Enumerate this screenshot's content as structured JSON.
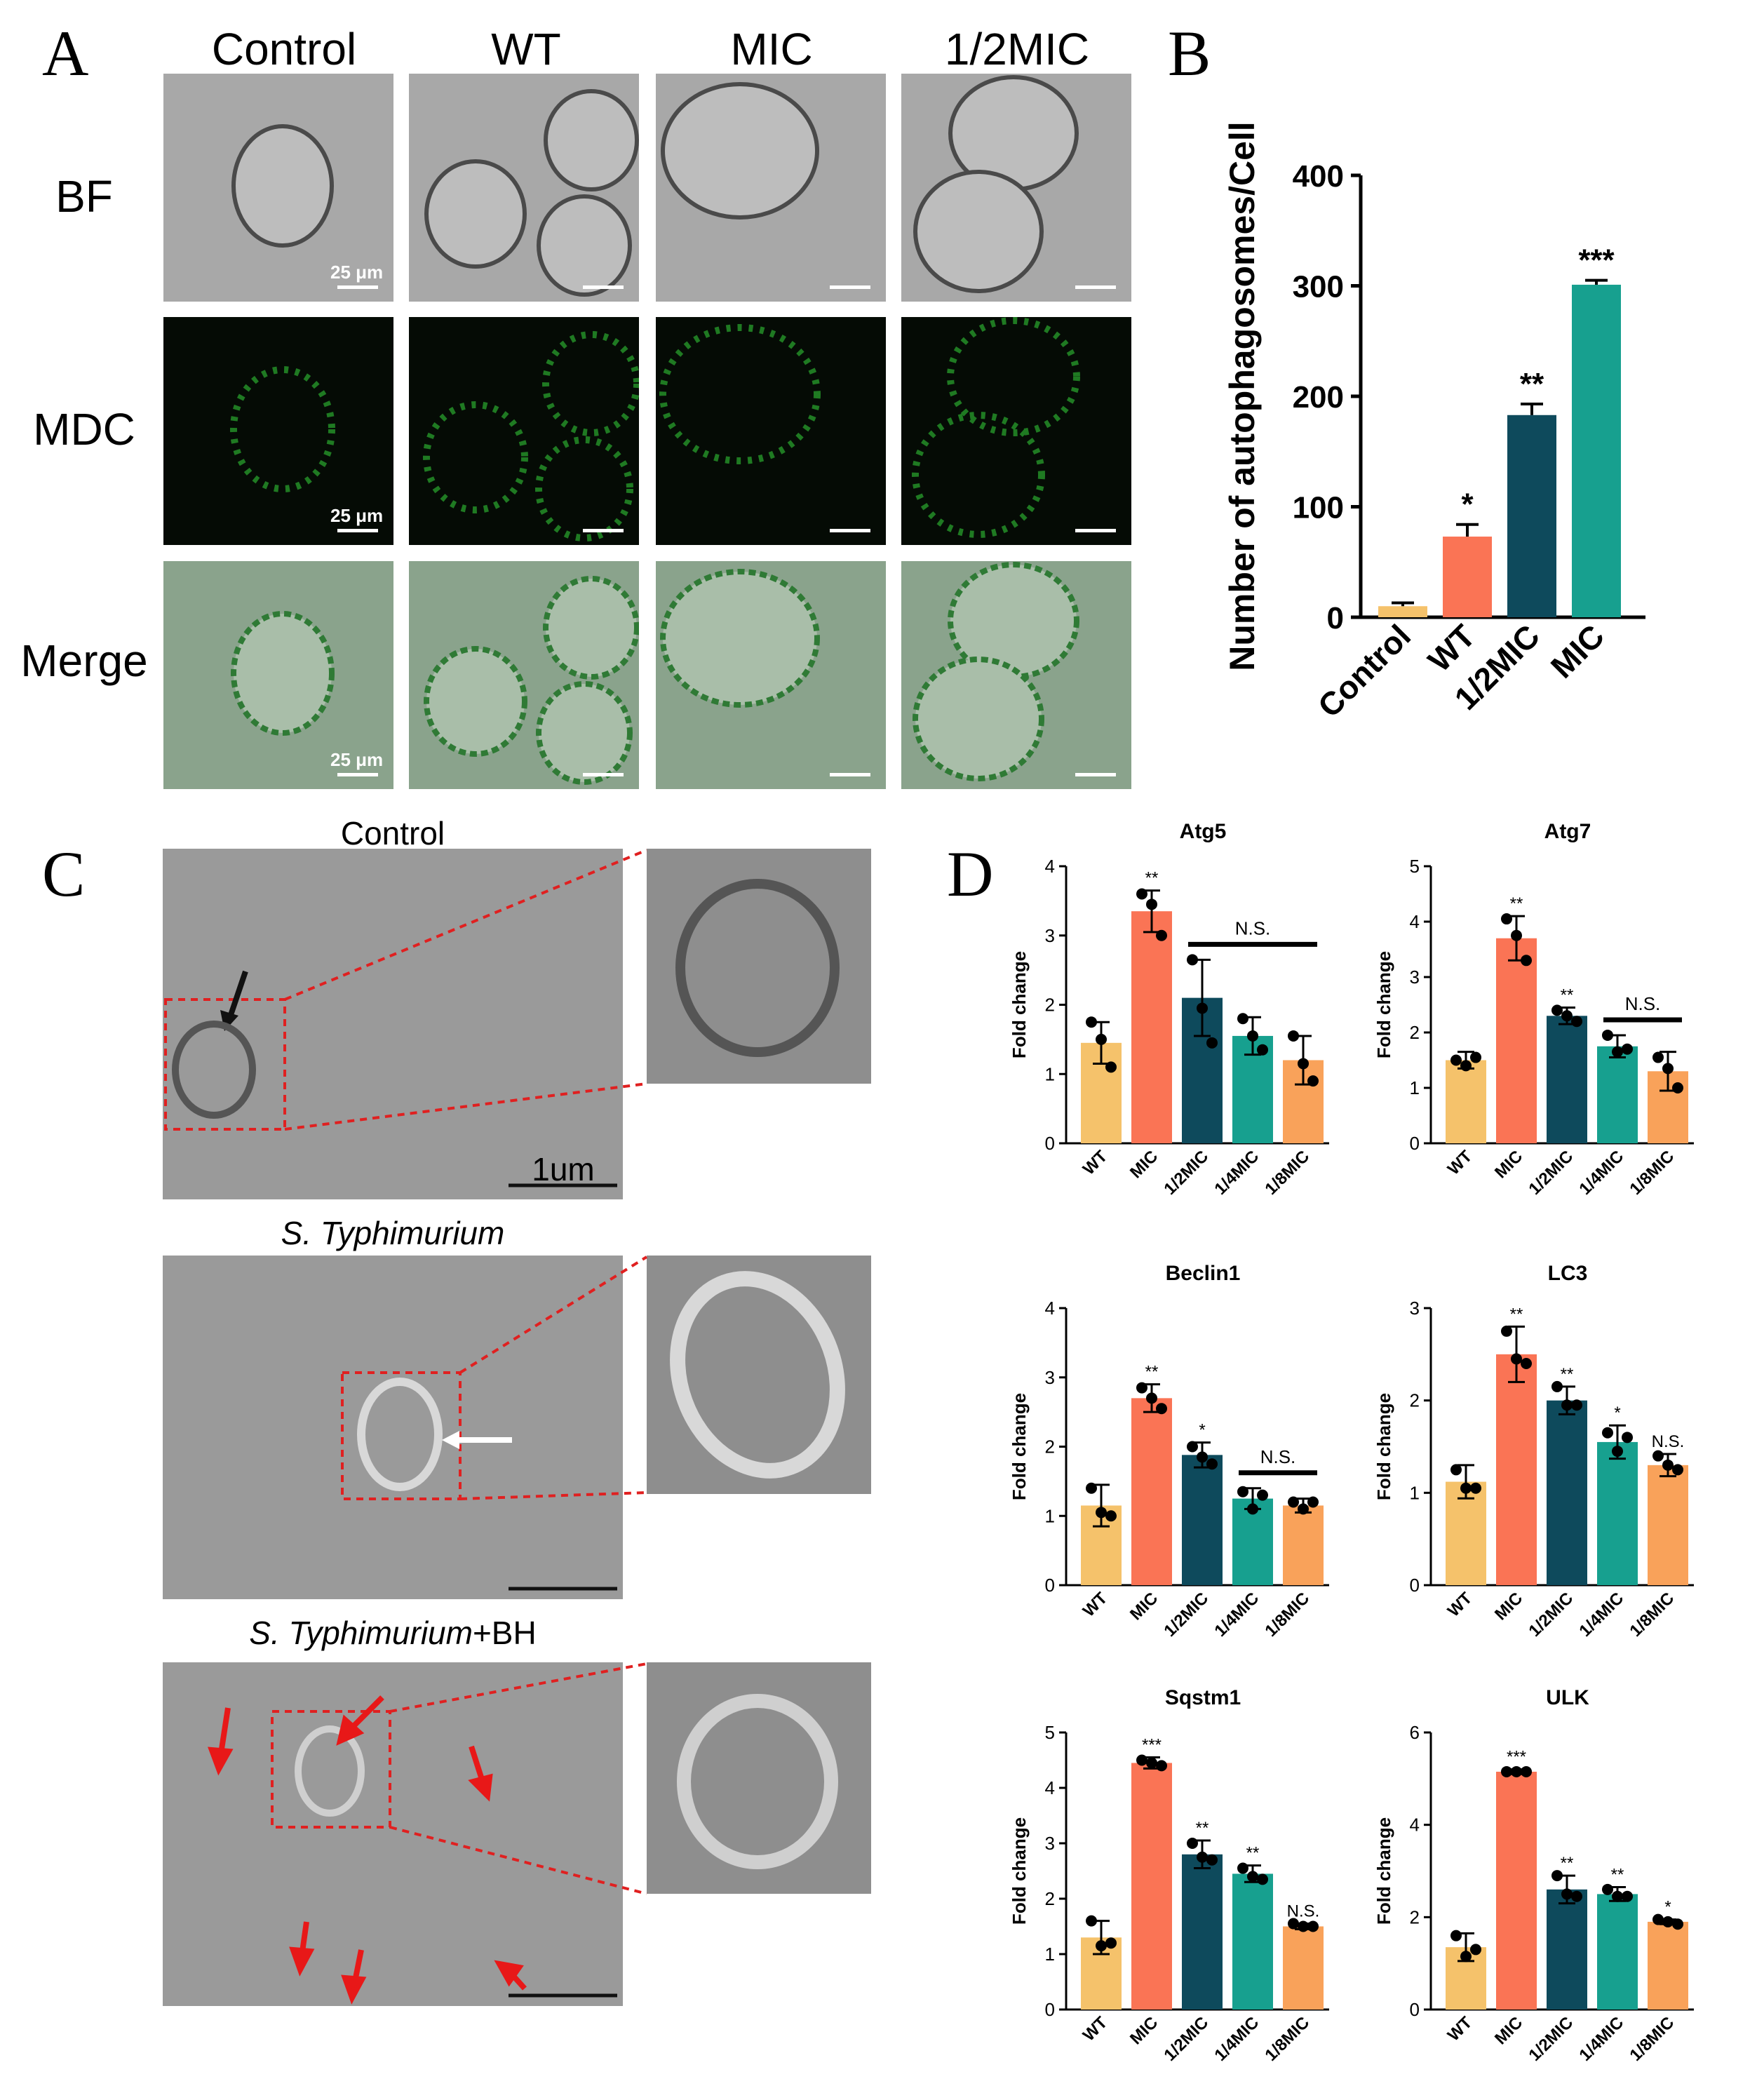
{
  "panel_labels": {
    "a": "A",
    "b": "B",
    "c": "C",
    "d": "D"
  },
  "panel_a": {
    "columns": [
      "Control",
      "WT",
      "MIC",
      "1/2MIC"
    ],
    "rows": [
      "BF",
      "MDC",
      "Merge"
    ],
    "scale_text": "25 μm"
  },
  "panel_c": {
    "title_control": "Control",
    "title_st": "S. Typhimurium",
    "title_st_bh_italic": "S. Typhimurium",
    "title_st_bh_suffix": "+BH",
    "scale_text": "1um"
  },
  "colors": {
    "control": "#F5C26B",
    "wt": "#F5C26B",
    "mic": "#FA7455",
    "half_mic": "#0E4A5C",
    "quarter_mic": "#17A08F",
    "eighth_mic": "#F9A25A",
    "b_wt": "#FA7455",
    "b_half": "#0E4A5C",
    "b_mic": "#17A08F"
  },
  "chart_data": [
    {
      "type": "bar",
      "panel": "B",
      "ylabel": "Number of autophagosomes/Cell",
      "categories": [
        "Control",
        "WT",
        "1/2MIC",
        "MIC"
      ],
      "values": [
        10,
        73,
        183,
        301
      ],
      "errors": [
        3,
        11,
        10,
        4
      ],
      "significance": [
        "",
        "*",
        "**",
        "***"
      ],
      "ylim": [
        0,
        400
      ],
      "yticks": [
        0,
        100,
        200,
        300,
        400
      ]
    },
    {
      "type": "bar",
      "panel": "D",
      "title": "Atg5",
      "ylabel": "Fold change",
      "categories": [
        "WT",
        "MIC",
        "1/2MIC",
        "1/4MIC",
        "1/8MIC"
      ],
      "values": [
        1.45,
        3.35,
        2.1,
        1.55,
        1.2
      ],
      "errors": [
        0.3,
        0.3,
        0.55,
        0.27,
        0.35
      ],
      "points": [
        [
          1.75,
          1.5,
          1.1
        ],
        [
          3.6,
          3.45,
          3.0
        ],
        [
          2.65,
          1.95,
          1.45
        ],
        [
          1.8,
          1.55,
          1.35
        ],
        [
          1.55,
          1.15,
          0.9
        ]
      ],
      "significance": [
        "",
        "**",
        "",
        "",
        ""
      ],
      "bracket": {
        "from": 2,
        "to": 4,
        "label": "N.S."
      },
      "ylim": [
        0,
        4
      ],
      "yticks": [
        0,
        1,
        2,
        3,
        4
      ]
    },
    {
      "type": "bar",
      "panel": "D",
      "title": "Atg7",
      "ylabel": "Fold change",
      "categories": [
        "WT",
        "MIC",
        "1/2MIC",
        "1/4MIC",
        "1/8MIC"
      ],
      "values": [
        1.5,
        3.7,
        2.3,
        1.75,
        1.3
      ],
      "errors": [
        0.15,
        0.4,
        0.15,
        0.2,
        0.35
      ],
      "points": [
        [
          1.5,
          1.4,
          1.55
        ],
        [
          4.05,
          3.75,
          3.3
        ],
        [
          2.4,
          2.3,
          2.2
        ],
        [
          1.95,
          1.65,
          1.7
        ],
        [
          1.55,
          1.35,
          1.0
        ]
      ],
      "significance": [
        "",
        "**",
        "**",
        "",
        ""
      ],
      "bracket": {
        "from": 3,
        "to": 4,
        "label": "N.S."
      },
      "ylim": [
        0,
        5
      ],
      "yticks": [
        0,
        1,
        2,
        3,
        4,
        5
      ]
    },
    {
      "type": "bar",
      "panel": "D",
      "title": "Beclin1",
      "ylabel": "Fold change",
      "categories": [
        "WT",
        "MIC",
        "1/2MIC",
        "1/4MIC",
        "1/8MIC"
      ],
      "values": [
        1.15,
        2.7,
        1.88,
        1.25,
        1.15
      ],
      "errors": [
        0.3,
        0.2,
        0.18,
        0.15,
        0.1
      ],
      "points": [
        [
          1.4,
          1.05,
          1.0
        ],
        [
          2.85,
          2.7,
          2.55
        ],
        [
          2.0,
          1.85,
          1.75
        ],
        [
          1.35,
          1.1,
          1.3
        ],
        [
          1.2,
          1.1,
          1.2
        ]
      ],
      "significance": [
        "",
        "**",
        "*",
        "",
        ""
      ],
      "bracket": {
        "from": 3,
        "to": 4,
        "label": "N.S."
      },
      "ylim": [
        0,
        4
      ],
      "yticks": [
        0,
        1,
        2,
        3,
        4
      ]
    },
    {
      "type": "bar",
      "panel": "D",
      "title": "LC3",
      "ylabel": "Fold change",
      "categories": [
        "WT",
        "MIC",
        "1/2MIC",
        "1/4MIC",
        "1/8MIC"
      ],
      "values": [
        1.12,
        2.5,
        2.0,
        1.55,
        1.3
      ],
      "errors": [
        0.18,
        0.3,
        0.15,
        0.18,
        0.12
      ],
      "points": [
        [
          1.25,
          1.05,
          1.05
        ],
        [
          2.75,
          2.45,
          2.4
        ],
        [
          2.15,
          1.95,
          1.95
        ],
        [
          1.65,
          1.45,
          1.6
        ],
        [
          1.4,
          1.3,
          1.25
        ]
      ],
      "significance": [
        "",
        "**",
        "**",
        "*",
        "N.S."
      ],
      "ylim": [
        0,
        3
      ],
      "yticks": [
        0,
        1,
        2,
        3
      ]
    },
    {
      "type": "bar",
      "panel": "D",
      "title": "Sqstm1",
      "ylabel": "Fold change",
      "categories": [
        "WT",
        "MIC",
        "1/2MIC",
        "1/4MIC",
        "1/8MIC"
      ],
      "values": [
        1.3,
        4.45,
        2.8,
        2.45,
        1.5
      ],
      "errors": [
        0.3,
        0.1,
        0.25,
        0.15,
        0.05
      ],
      "points": [
        [
          1.6,
          1.15,
          1.2
        ],
        [
          4.5,
          4.45,
          4.4
        ],
        [
          3.0,
          2.75,
          2.7
        ],
        [
          2.55,
          2.4,
          2.35
        ],
        [
          1.55,
          1.5,
          1.5
        ]
      ],
      "significance": [
        "",
        "***",
        "**",
        "**",
        "N.S."
      ],
      "ylim": [
        0,
        5
      ],
      "yticks": [
        0,
        1,
        2,
        3,
        4,
        5
      ]
    },
    {
      "type": "bar",
      "panel": "D",
      "title": "ULK",
      "ylabel": "Fold change",
      "categories": [
        "WT",
        "MIC",
        "1/2MIC",
        "1/4MIC",
        "1/8MIC"
      ],
      "values": [
        1.35,
        5.15,
        2.6,
        2.5,
        1.9
      ],
      "errors": [
        0.3,
        0.05,
        0.3,
        0.15,
        0.05
      ],
      "points": [
        [
          1.6,
          1.15,
          1.3
        ],
        [
          5.15,
          5.15,
          5.15
        ],
        [
          2.9,
          2.5,
          2.45
        ],
        [
          2.6,
          2.45,
          2.45
        ],
        [
          1.95,
          1.9,
          1.85
        ]
      ],
      "significance": [
        "",
        "***",
        "**",
        "**",
        "*"
      ],
      "ylim": [
        0,
        6
      ],
      "yticks": [
        0,
        2,
        4,
        6
      ]
    }
  ]
}
